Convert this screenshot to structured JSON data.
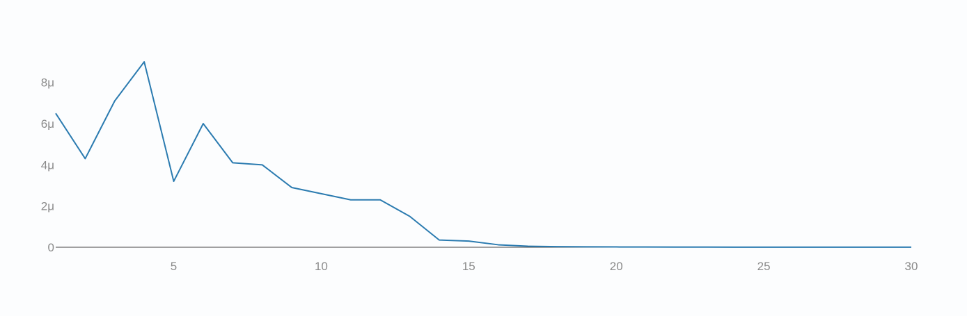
{
  "chart_data": {
    "type": "line",
    "x": [
      1,
      2,
      3,
      4,
      5,
      6,
      7,
      8,
      9,
      10,
      11,
      12,
      13,
      14,
      15,
      16,
      17,
      18,
      19,
      20,
      21,
      22,
      23,
      24,
      25,
      26,
      27,
      28,
      29,
      30
    ],
    "series": [
      {
        "values": [
          6.5e-06,
          4.3e-06,
          7.1e-06,
          9e-06,
          3.2e-06,
          6e-06,
          4.1e-06,
          4e-06,
          2.9e-06,
          2.6e-06,
          2.3e-06,
          2.3e-06,
          1.5e-06,
          3.5e-07,
          3e-07,
          1.2e-07,
          5e-08,
          3e-08,
          2e-08,
          1.5e-08,
          1.2e-08,
          1e-08,
          1e-08,
          5e-09,
          5e-09,
          4e-09,
          4e-09,
          3e-09,
          3e-09,
          3e-09
        ],
        "color": "#2b7bb0"
      }
    ],
    "xlim": [
      1,
      30
    ],
    "ylim": [
      0,
      9e-06
    ],
    "x_ticks": [
      5,
      10,
      15,
      20,
      25,
      30
    ],
    "x_tick_labels": [
      "5",
      "10",
      "15",
      "20",
      "25",
      "30"
    ],
    "y_ticks": [
      0,
      2e-06,
      4e-06,
      6e-06,
      8e-06
    ],
    "y_tick_labels": [
      "0",
      "2μ",
      "4μ",
      "6μ",
      "8μ"
    ],
    "title": "",
    "xlabel": "",
    "ylabel": "",
    "grid": false,
    "colors": {
      "line": "#2b7bb0",
      "zero_line": "#444444",
      "tick_text": "#8a8a8a",
      "background": "#fcfdfe"
    }
  }
}
